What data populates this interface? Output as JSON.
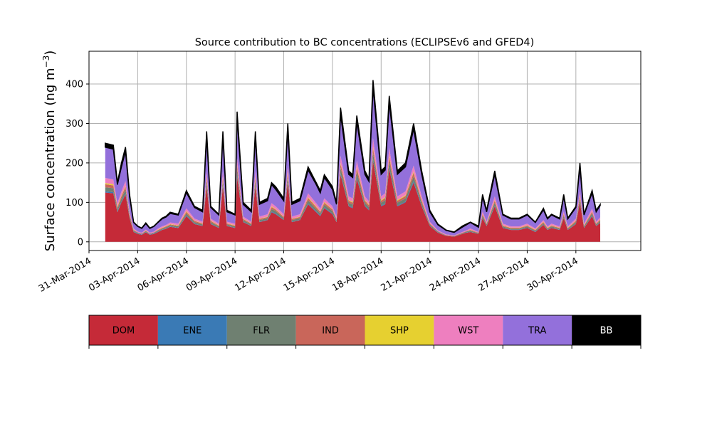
{
  "chart_data": {
    "type": "area",
    "stacked": true,
    "title": "Source contribution to BC concentrations (ECLIPSEv6 and GFED4)",
    "ylabel": "Surface concentration (ng m",
    "ylabel_unit_exponent": "−3",
    "ylabel_close": ")",
    "xlabel": "",
    "x_axis_type": "date",
    "xlim": [
      "2014-03-31",
      "2014-05-04"
    ],
    "ylim": [
      -22,
      483
    ],
    "grid": true,
    "yticks": [
      0,
      100,
      200,
      300,
      400
    ],
    "xtick_labels": [
      "31-Mar-2014",
      "03-Apr-2014",
      "06-Apr-2014",
      "09-Apr-2014",
      "12-Apr-2014",
      "15-Apr-2014",
      "18-Apr-2014",
      "21-Apr-2014",
      "24-Apr-2014",
      "27-Apr-2014",
      "30-Apr-2014"
    ],
    "xtick_dates": [
      "2014-03-31",
      "2014-04-03",
      "2014-04-06",
      "2014-04-09",
      "2014-04-12",
      "2014-04-15",
      "2014-04-18",
      "2014-04-21",
      "2014-04-24",
      "2014-04-27",
      "2014-04-30"
    ],
    "legend_placement": "below",
    "legend": [
      {
        "name": "DOM",
        "color": "#c52a38",
        "text_color": "#000000"
      },
      {
        "name": "ENE",
        "color": "#3a7ab5",
        "text_color": "#000000"
      },
      {
        "name": "FLR",
        "color": "#6f8071",
        "text_color": "#000000"
      },
      {
        "name": "IND",
        "color": "#c9665a",
        "text_color": "#000000"
      },
      {
        "name": "SHP",
        "color": "#e6d030",
        "text_color": "#000000"
      },
      {
        "name": "WST",
        "color": "#ee7fbf",
        "text_color": "#000000"
      },
      {
        "name": "TRA",
        "color": "#9370db",
        "text_color": "#000000"
      },
      {
        "name": "BB",
        "color": "#000000",
        "text_color": "#ffffff"
      }
    ],
    "x": [
      "2014-04-01T00",
      "2014-04-01T12",
      "2014-04-01T18",
      "2014-04-02T00",
      "2014-04-02T06",
      "2014-04-02T12",
      "2014-04-02T18",
      "2014-04-03T00",
      "2014-04-03T06",
      "2014-04-03T12",
      "2014-04-03T18",
      "2014-04-04T00",
      "2014-04-04T06",
      "2014-04-04T12",
      "2014-04-04T18",
      "2014-04-05T00",
      "2014-04-05T12",
      "2014-04-06T00",
      "2014-04-06T12",
      "2014-04-07T00",
      "2014-04-07T06",
      "2014-04-07T12",
      "2014-04-08T00",
      "2014-04-08T06",
      "2014-04-08T12",
      "2014-04-09T00",
      "2014-04-09T03",
      "2014-04-09T12",
      "2014-04-10T00",
      "2014-04-10T06",
      "2014-04-10T12",
      "2014-04-11T00",
      "2014-04-11T06",
      "2014-04-11T12",
      "2014-04-12T00",
      "2014-04-12T06",
      "2014-04-12T12",
      "2014-04-13T00",
      "2014-04-13T12",
      "2014-04-14T00",
      "2014-04-14T06",
      "2014-04-14T12",
      "2014-04-15T00",
      "2014-04-15T06",
      "2014-04-15T12",
      "2014-04-16T00",
      "2014-04-16T06",
      "2014-04-16T12",
      "2014-04-17T00",
      "2014-04-17T06",
      "2014-04-17T12",
      "2014-04-18T00",
      "2014-04-18T06",
      "2014-04-18T12",
      "2014-04-19T00",
      "2014-04-19T12",
      "2014-04-20T00",
      "2014-04-20T12",
      "2014-04-21T00",
      "2014-04-21T12",
      "2014-04-22T00",
      "2014-04-22T12",
      "2014-04-23T00",
      "2014-04-23T06",
      "2014-04-23T12",
      "2014-04-24T00",
      "2014-04-24T06",
      "2014-04-24T12",
      "2014-04-25T00",
      "2014-04-25T12",
      "2014-04-26T00",
      "2014-04-26T12",
      "2014-04-27T00",
      "2014-04-27T12",
      "2014-04-28T00",
      "2014-04-28T06",
      "2014-04-28T12",
      "2014-04-29T00",
      "2014-04-29T06",
      "2014-04-29T12",
      "2014-04-30T00",
      "2014-04-30T06",
      "2014-04-30T12",
      "2014-05-01T00",
      "2014-05-01T06",
      "2014-05-01T12"
    ],
    "total": [
      250,
      245,
      150,
      200,
      240,
      120,
      50,
      40,
      35,
      48,
      35,
      40,
      50,
      60,
      65,
      75,
      70,
      130,
      90,
      80,
      280,
      90,
      70,
      280,
      80,
      70,
      330,
      100,
      80,
      280,
      100,
      110,
      150,
      140,
      110,
      300,
      100,
      110,
      190,
      150,
      130,
      170,
      140,
      100,
      340,
      180,
      170,
      320,
      180,
      160,
      410,
      180,
      190,
      370,
      180,
      200,
      300,
      180,
      80,
      45,
      30,
      25,
      40,
      45,
      50,
      40,
      120,
      80,
      180,
      70,
      60,
      60,
      70,
      50,
      85,
      60,
      70,
      60,
      120,
      60,
      90,
      200,
      70,
      130,
      80,
      95
    ],
    "series": [
      {
        "name": "DOM",
        "values": [
          125,
          123,
          75,
          100,
          120,
          60,
          25,
          20,
          18,
          24,
          18,
          20,
          25,
          30,
          33,
          38,
          35,
          65,
          45,
          40,
          140,
          45,
          35,
          140,
          40,
          35,
          165,
          50,
          40,
          140,
          50,
          55,
          75,
          70,
          55,
          150,
          50,
          55,
          95,
          75,
          65,
          85,
          70,
          50,
          170,
          90,
          85,
          160,
          90,
          80,
          205,
          90,
          95,
          185,
          90,
          100,
          150,
          90,
          40,
          23,
          15,
          13,
          20,
          23,
          25,
          20,
          60,
          40,
          90,
          35,
          30,
          30,
          35,
          25,
          43,
          30,
          35,
          30,
          60,
          30,
          45,
          100,
          35,
          65,
          40,
          48
        ]
      },
      {
        "name": "ENE",
        "values": [
          3,
          3,
          2,
          2,
          3,
          1,
          1,
          1,
          1,
          1,
          1,
          1,
          1,
          1,
          1,
          1,
          1,
          2,
          1,
          1,
          3,
          1,
          1,
          3,
          1,
          1,
          4,
          1,
          1,
          3,
          1,
          1,
          2,
          2,
          1,
          4,
          1,
          1,
          2,
          2,
          2,
          2,
          2,
          1,
          4,
          2,
          2,
          4,
          2,
          2,
          5,
          2,
          2,
          4,
          2,
          2,
          4,
          2,
          1,
          1,
          0,
          0,
          0,
          1,
          1,
          0,
          1,
          1,
          2,
          1,
          1,
          1,
          1,
          1,
          1,
          1,
          1,
          1,
          1,
          1,
          1,
          2,
          1,
          2,
          1,
          1
        ]
      },
      {
        "name": "FLR",
        "values": [
          10,
          10,
          6,
          8,
          10,
          5,
          2,
          2,
          1,
          2,
          1,
          2,
          2,
          2,
          3,
          3,
          3,
          5,
          4,
          3,
          11,
          4,
          3,
          11,
          3,
          3,
          13,
          4,
          3,
          11,
          4,
          4,
          6,
          6,
          4,
          12,
          4,
          4,
          8,
          6,
          5,
          7,
          6,
          4,
          14,
          7,
          7,
          13,
          7,
          6,
          16,
          7,
          8,
          15,
          7,
          8,
          12,
          7,
          3,
          2,
          1,
          1,
          2,
          2,
          2,
          2,
          5,
          3,
          7,
          3,
          2,
          2,
          3,
          2,
          3,
          2,
          3,
          2,
          5,
          2,
          4,
          8,
          3,
          5,
          3,
          4
        ]
      },
      {
        "name": "IND",
        "values": [
          8,
          7,
          5,
          6,
          7,
          4,
          2,
          1,
          1,
          1,
          1,
          1,
          2,
          2,
          2,
          2,
          2,
          4,
          3,
          2,
          8,
          3,
          2,
          8,
          2,
          2,
          10,
          3,
          2,
          8,
          3,
          3,
          5,
          4,
          3,
          9,
          3,
          3,
          6,
          5,
          4,
          5,
          4,
          3,
          10,
          5,
          5,
          10,
          5,
          5,
          12,
          5,
          6,
          11,
          5,
          6,
          9,
          5,
          2,
          1,
          1,
          1,
          1,
          1,
          2,
          1,
          4,
          2,
          5,
          2,
          2,
          2,
          2,
          2,
          3,
          2,
          2,
          2,
          4,
          2,
          3,
          6,
          2,
          4,
          2,
          3
        ]
      },
      {
        "name": "SHP",
        "values": [
          3,
          3,
          2,
          2,
          2,
          1,
          1,
          0,
          0,
          1,
          0,
          0,
          1,
          1,
          1,
          1,
          1,
          2,
          1,
          1,
          3,
          1,
          1,
          3,
          1,
          1,
          3,
          1,
          1,
          3,
          1,
          1,
          2,
          1,
          1,
          3,
          1,
          1,
          2,
          2,
          1,
          2,
          1,
          1,
          3,
          2,
          2,
          3,
          2,
          2,
          4,
          2,
          2,
          4,
          2,
          2,
          3,
          2,
          1,
          0,
          0,
          0,
          0,
          0,
          1,
          0,
          1,
          1,
          2,
          1,
          1,
          1,
          1,
          1,
          1,
          1,
          1,
          1,
          1,
          1,
          1,
          2,
          1,
          1,
          1,
          1
        ]
      },
      {
        "name": "WST",
        "values": [
          13,
          12,
          8,
          10,
          12,
          6,
          3,
          2,
          2,
          2,
          2,
          2,
          3,
          3,
          3,
          4,
          4,
          7,
          5,
          4,
          14,
          5,
          4,
          14,
          4,
          4,
          17,
          5,
          4,
          14,
          5,
          6,
          8,
          7,
          6,
          15,
          5,
          6,
          10,
          8,
          7,
          9,
          7,
          5,
          17,
          9,
          9,
          16,
          9,
          8,
          21,
          9,
          10,
          19,
          9,
          10,
          15,
          9,
          4,
          2,
          2,
          1,
          2,
          2,
          3,
          2,
          6,
          4,
          9,
          4,
          3,
          3,
          4,
          3,
          4,
          3,
          4,
          3,
          6,
          3,
          5,
          10,
          4,
          7,
          4,
          5
        ]
      },
      {
        "name": "TRA",
        "values": [
          78,
          77,
          47,
          62,
          75,
          37,
          15,
          13,
          11,
          15,
          11,
          13,
          15,
          19,
          20,
          23,
          22,
          40,
          28,
          25,
          87,
          28,
          22,
          87,
          25,
          22,
          102,
          31,
          25,
          87,
          31,
          34,
          47,
          43,
          34,
          93,
          31,
          34,
          59,
          47,
          40,
          53,
          43,
          31,
          105,
          56,
          53,
          99,
          56,
          50,
          127,
          56,
          59,
          115,
          56,
          62,
          93,
          56,
          25,
          14,
          10,
          8,
          12,
          14,
          15,
          12,
          37,
          25,
          56,
          22,
          19,
          19,
          22,
          15,
          26,
          19,
          22,
          19,
          37,
          19,
          28,
          62,
          22,
          40,
          25,
          30
        ]
      },
      {
        "name": "BB",
        "values": [
          10,
          10,
          5,
          10,
          11,
          6,
          1,
          1,
          1,
          2,
          1,
          1,
          1,
          2,
          2,
          3,
          2,
          5,
          3,
          4,
          14,
          3,
          2,
          14,
          4,
          2,
          16,
          5,
          4,
          14,
          5,
          6,
          5,
          7,
          6,
          14,
          5,
          6,
          8,
          5,
          6,
          7,
          7,
          5,
          17,
          9,
          7,
          15,
          9,
          7,
          20,
          9,
          8,
          17,
          9,
          10,
          14,
          9,
          4,
          2,
          1,
          1,
          3,
          2,
          1,
          3,
          6,
          4,
          9,
          2,
          2,
          2,
          2,
          1,
          4,
          2,
          2,
          2,
          6,
          2,
          3,
          10,
          2,
          6,
          4,
          3
        ]
      }
    ]
  }
}
